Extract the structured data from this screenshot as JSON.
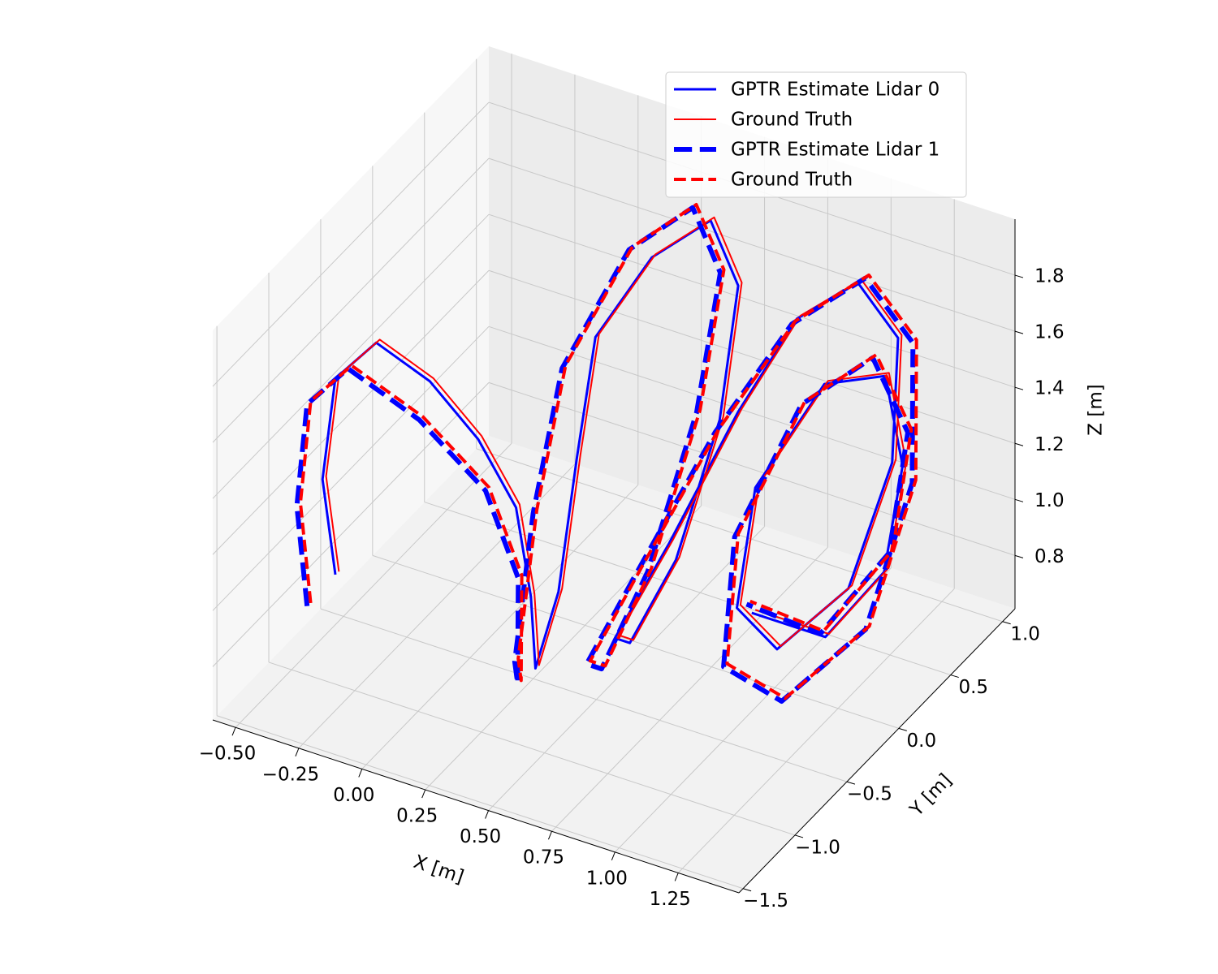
{
  "chart_data": {
    "type": "line3d",
    "xlabel": "X [m]",
    "ylabel": "Y [m]",
    "zlabel": "Z [m]",
    "xlim": [
      -0.59,
      1.49
    ],
    "ylim": [
      -1.54,
      1.12
    ],
    "zlim": [
      0.61,
      2.0
    ],
    "xticks": [
      {
        "value": -0.5,
        "label": "−0.50"
      },
      {
        "value": -0.25,
        "label": "−0.25"
      },
      {
        "value": 0,
        "label": "0.00"
      },
      0.25,
      {
        "value": 0.5,
        "label": "0.50"
      },
      0.75,
      {
        "value": 1,
        "label": "1.00"
      },
      1.25
    ],
    "yticks": [
      {
        "value": -1.5,
        "label": "−1.5"
      },
      {
        "value": -1,
        "label": "−1.0"
      },
      {
        "value": -0.5,
        "label": "−0.5"
      },
      {
        "value": 0,
        "label": "0.0"
      },
      0.5,
      {
        "value": 1,
        "label": "1.0"
      }
    ],
    "zticks": [
      0.8,
      {
        "value": 1,
        "label": "1.0"
      },
      1.2,
      1.4,
      1.6,
      1.8
    ],
    "grid": true,
    "legend": "upper right",
    "series": [
      {
        "name": "GPTR Estimate Lidar 0",
        "color": "#0000ff",
        "linewidth": 3,
        "linestyle": "solid",
        "x": [
          -0.45,
          -0.48,
          -0.45,
          -0.35,
          -0.2,
          -0.05,
          0.1,
          0.2,
          0.3,
          0.35,
          0.3,
          0.25,
          0.35,
          0.5,
          0.65,
          0.7,
          0.65,
          0.55,
          0.45,
          0.5,
          0.65,
          0.8,
          1.0,
          1.2,
          1.3,
          1.25,
          1.05,
          0.85,
          0.8,
          0.95,
          1.15,
          1.3,
          1.35,
          1.2,
          0.95
        ],
        "y": [
          -0.7,
          -0.75,
          -0.7,
          -0.55,
          -0.4,
          -0.3,
          -0.3,
          -0.4,
          -0.6,
          -0.5,
          -0.2,
          0.1,
          0.4,
          0.6,
          0.5,
          0.2,
          -0.1,
          -0.3,
          -0.2,
          0.2,
          0.5,
          0.7,
          0.8,
          0.7,
          0.4,
          0.1,
          -0.1,
          0.0,
          0.3,
          0.6,
          0.7,
          0.5,
          0.2,
          0.0,
          -0.1
        ],
        "z": [
          0.85,
          1.2,
          1.55,
          1.65,
          1.5,
          1.3,
          1.1,
          0.85,
          0.7,
          0.95,
          1.3,
          1.6,
          1.8,
          1.9,
          1.75,
          1.4,
          1.0,
          0.75,
          0.7,
          0.9,
          1.3,
          1.6,
          1.75,
          1.65,
          1.35,
          1.0,
          0.8,
          0.85,
          1.15,
          1.45,
          1.5,
          1.3,
          1.05,
          0.85,
          0.9
        ]
      },
      {
        "name": "Ground Truth",
        "color": "#ff0000",
        "linewidth": 2,
        "linestyle": "solid",
        "x": [
          -0.44,
          -0.47,
          -0.44,
          -0.34,
          -0.19,
          -0.04,
          0.11,
          0.21,
          0.31,
          0.36,
          0.31,
          0.26,
          0.36,
          0.51,
          0.66,
          0.71,
          0.66,
          0.56,
          0.46,
          0.51,
          0.66,
          0.81,
          1.01,
          1.21,
          1.31,
          1.26,
          1.06,
          0.86,
          0.81,
          0.96,
          1.16,
          1.31,
          1.36,
          1.21,
          0.96
        ],
        "y": [
          -0.69,
          -0.74,
          -0.69,
          -0.54,
          -0.39,
          -0.29,
          -0.29,
          -0.39,
          -0.59,
          -0.49,
          -0.19,
          0.11,
          0.41,
          0.61,
          0.51,
          0.21,
          -0.09,
          -0.29,
          -0.19,
          0.21,
          0.51,
          0.71,
          0.81,
          0.71,
          0.41,
          0.11,
          -0.09,
          0.01,
          0.31,
          0.61,
          0.71,
          0.51,
          0.21,
          0.01,
          -0.09
        ],
        "z": [
          0.86,
          1.21,
          1.56,
          1.66,
          1.51,
          1.31,
          1.11,
          0.86,
          0.71,
          0.96,
          1.31,
          1.61,
          1.81,
          1.91,
          1.76,
          1.41,
          1.01,
          0.76,
          0.71,
          0.91,
          1.31,
          1.61,
          1.76,
          1.66,
          1.36,
          1.01,
          0.81,
          0.86,
          1.16,
          1.46,
          1.51,
          1.31,
          1.06,
          0.86,
          0.91
        ]
      },
      {
        "name": "GPTR Estimate Lidar 1",
        "color": "#0000ff",
        "linewidth": 6,
        "linestyle": "dashed",
        "x": [
          -0.5,
          -0.52,
          -0.5,
          -0.4,
          -0.2,
          0.0,
          0.15,
          0.25,
          0.3,
          0.25,
          0.2,
          0.3,
          0.45,
          0.6,
          0.65,
          0.6,
          0.5,
          0.4,
          0.45,
          0.6,
          0.8,
          1.05,
          1.3,
          1.42,
          1.38,
          1.15,
          0.9,
          0.8,
          0.9,
          1.1,
          1.3,
          1.35,
          1.2,
          0.95
        ],
        "y": [
          -0.85,
          -0.9,
          -0.85,
          -0.7,
          -0.5,
          -0.35,
          -0.4,
          -0.65,
          -0.8,
          -0.5,
          -0.1,
          0.3,
          0.55,
          0.45,
          0.1,
          -0.25,
          -0.45,
          -0.35,
          0.0,
          0.4,
          0.65,
          0.75,
          0.6,
          0.3,
          -0.05,
          -0.3,
          -0.25,
          0.1,
          0.5,
          0.7,
          0.55,
          0.25,
          -0.05,
          -0.15
        ],
        "z": [
          0.78,
          1.15,
          1.5,
          1.6,
          1.4,
          1.15,
          0.9,
          0.65,
          0.8,
          1.2,
          1.55,
          1.85,
          1.95,
          1.8,
          1.45,
          1.0,
          0.7,
          0.65,
          0.85,
          1.25,
          1.6,
          1.8,
          1.7,
          1.35,
          0.95,
          0.72,
          0.75,
          1.05,
          1.4,
          1.55,
          1.4,
          1.1,
          0.88,
          0.95
        ]
      },
      {
        "name": "Ground Truth",
        "color": "#ff0000",
        "linewidth": 4,
        "linestyle": "dashed",
        "x": [
          -0.49,
          -0.51,
          -0.49,
          -0.39,
          -0.19,
          0.01,
          0.16,
          0.26,
          0.31,
          0.26,
          0.21,
          0.31,
          0.46,
          0.61,
          0.66,
          0.61,
          0.51,
          0.41,
          0.46,
          0.61,
          0.81,
          1.06,
          1.31,
          1.43,
          1.39,
          1.16,
          0.91,
          0.81,
          0.91,
          1.11,
          1.31,
          1.36,
          1.21,
          0.96
        ],
        "y": [
          -0.84,
          -0.89,
          -0.84,
          -0.69,
          -0.49,
          -0.34,
          -0.39,
          -0.64,
          -0.79,
          -0.49,
          -0.09,
          0.31,
          0.56,
          0.46,
          0.11,
          -0.24,
          -0.44,
          -0.34,
          0.01,
          0.41,
          0.66,
          0.76,
          0.61,
          0.31,
          -0.04,
          -0.29,
          -0.24,
          0.11,
          0.51,
          0.71,
          0.56,
          0.26,
          -0.04,
          -0.14
        ],
        "z": [
          0.79,
          1.16,
          1.51,
          1.61,
          1.41,
          1.16,
          0.91,
          0.66,
          0.81,
          1.21,
          1.56,
          1.86,
          1.96,
          1.81,
          1.46,
          1.01,
          0.71,
          0.66,
          0.86,
          1.26,
          1.61,
          1.81,
          1.71,
          1.36,
          0.96,
          0.73,
          0.76,
          1.06,
          1.41,
          1.56,
          1.41,
          1.11,
          0.89,
          0.96
        ]
      }
    ]
  }
}
